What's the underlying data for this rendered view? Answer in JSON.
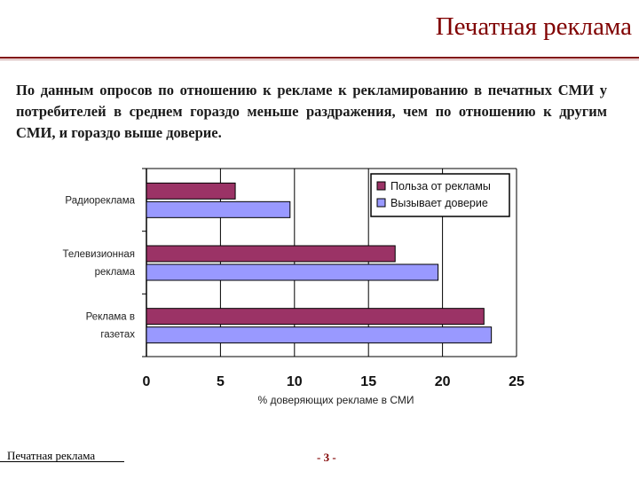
{
  "slide": {
    "title": "Печатная реклама",
    "body": "По данным опросов по отношению к рекламе к рекламированию в печатных СМИ у потребителей в среднем гораздо меньше раздражения, чем по отношению к другим СМИ, и гораздо выше доверие.",
    "footer": "Печатная реклама",
    "page_number": "- 3 -"
  },
  "chart_data": {
    "type": "bar",
    "orientation": "horizontal",
    "categories": [
      [
        "Радиореклама"
      ],
      [
        "Телевизионная",
        "реклама"
      ],
      [
        "Реклама в",
        "газетах"
      ]
    ],
    "series": [
      {
        "name": "Польза от рекламы",
        "color": "#9b3366",
        "values": [
          6,
          16.8,
          22.8
        ]
      },
      {
        "name": "Вызывает доверие",
        "color": "#9999ff",
        "values": [
          9.7,
          19.7,
          23.3
        ]
      }
    ],
    "xlabel": "% доверяющих рекламе в СМИ",
    "xlim": [
      0,
      25
    ],
    "xticks": [
      0,
      5,
      10,
      15,
      20,
      25
    ],
    "grid": true,
    "legend": "top-right"
  }
}
